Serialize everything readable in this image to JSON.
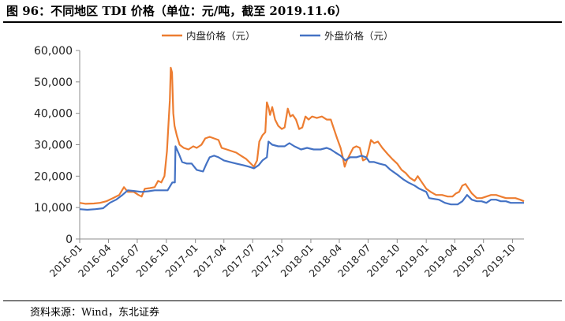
{
  "figure": {
    "title": "图 96：不同地区 TDI 价格（单位：元/吨，截至 2019.11.6）",
    "source": "资料来源：Wind，东北证券"
  },
  "chart_data": {
    "type": "line",
    "title": "",
    "xlabel": "",
    "ylabel": "",
    "ylim": [
      0,
      60000
    ],
    "yticks": [
      0,
      10000,
      20000,
      30000,
      40000,
      50000,
      60000
    ],
    "ytick_labels": [
      "0",
      "10,000",
      "20,000",
      "30,000",
      "40,000",
      "50,000",
      "60,000"
    ],
    "xticks": [
      "2016-01",
      "2016-04",
      "2016-07",
      "2016-10",
      "2017-01",
      "2017-04",
      "2017-07",
      "2017-10",
      "2018-01",
      "2018-04",
      "2018-07",
      "2018-10",
      "2019-01",
      "2019-04",
      "2019-07",
      "2019-10"
    ],
    "xlim": [
      "2016-01-01",
      "2019-11-06"
    ],
    "grid": false,
    "legend_position": "top",
    "series": [
      {
        "name": "内盘价格（元）",
        "color": "#ED7D31",
        "points": [
          [
            "2016-01-01",
            11500
          ],
          [
            "2016-01-20",
            11200
          ],
          [
            "2016-02-15",
            11300
          ],
          [
            "2016-03-05",
            11500
          ],
          [
            "2016-03-25",
            12000
          ],
          [
            "2016-04-15",
            13000
          ],
          [
            "2016-05-05",
            14000
          ],
          [
            "2016-05-20",
            16500
          ],
          [
            "2016-06-01",
            15000
          ],
          [
            "2016-06-20",
            15000
          ],
          [
            "2016-07-05",
            14000
          ],
          [
            "2016-07-15",
            13500
          ],
          [
            "2016-07-25",
            16000
          ],
          [
            "2016-08-10",
            16200
          ],
          [
            "2016-08-25",
            16500
          ],
          [
            "2016-09-05",
            18500
          ],
          [
            "2016-09-15",
            18000
          ],
          [
            "2016-09-25",
            20000
          ],
          [
            "2016-10-03",
            28000
          ],
          [
            "2016-10-08",
            37000
          ],
          [
            "2016-10-12",
            44000
          ],
          [
            "2016-10-15",
            54500
          ],
          [
            "2016-10-19",
            53000
          ],
          [
            "2016-10-23",
            40000
          ],
          [
            "2016-10-27",
            36000
          ],
          [
            "2016-11-03",
            33000
          ],
          [
            "2016-11-12",
            30000
          ],
          [
            "2016-11-25",
            29000
          ],
          [
            "2016-12-10",
            28500
          ],
          [
            "2016-12-25",
            29500
          ],
          [
            "2017-01-05",
            29000
          ],
          [
            "2017-01-20",
            30000
          ],
          [
            "2017-02-01",
            32000
          ],
          [
            "2017-02-15",
            32500
          ],
          [
            "2017-03-01",
            32000
          ],
          [
            "2017-03-15",
            31500
          ],
          [
            "2017-03-25",
            29000
          ],
          [
            "2017-04-10",
            28500
          ],
          [
            "2017-04-25",
            28000
          ],
          [
            "2017-05-10",
            27500
          ],
          [
            "2017-05-25",
            26500
          ],
          [
            "2017-06-10",
            25500
          ],
          [
            "2017-06-25",
            24000
          ],
          [
            "2017-07-05",
            23000
          ],
          [
            "2017-07-15",
            25000
          ],
          [
            "2017-07-22",
            31000
          ],
          [
            "2017-08-01",
            33000
          ],
          [
            "2017-08-10",
            34000
          ],
          [
            "2017-08-15",
            43500
          ],
          [
            "2017-08-20",
            42000
          ],
          [
            "2017-08-25",
            39500
          ],
          [
            "2017-09-01",
            42000
          ],
          [
            "2017-09-10",
            38000
          ],
          [
            "2017-09-20",
            36000
          ],
          [
            "2017-10-01",
            35000
          ],
          [
            "2017-10-10",
            35500
          ],
          [
            "2017-10-15",
            38500
          ],
          [
            "2017-10-20",
            41500
          ],
          [
            "2017-10-28",
            39000
          ],
          [
            "2017-11-05",
            39500
          ],
          [
            "2017-11-15",
            38000
          ],
          [
            "2017-11-25",
            35000
          ],
          [
            "2017-12-05",
            35500
          ],
          [
            "2017-12-15",
            39000
          ],
          [
            "2017-12-25",
            38000
          ],
          [
            "2018-01-05",
            39000
          ],
          [
            "2018-01-20",
            38500
          ],
          [
            "2018-02-05",
            39000
          ],
          [
            "2018-02-20",
            38000
          ],
          [
            "2018-03-05",
            38000
          ],
          [
            "2018-03-15",
            35000
          ],
          [
            "2018-03-25",
            32000
          ],
          [
            "2018-04-05",
            29000
          ],
          [
            "2018-04-12",
            26000
          ],
          [
            "2018-04-18",
            23000
          ],
          [
            "2018-04-25",
            25000
          ],
          [
            "2018-05-05",
            27000
          ],
          [
            "2018-05-15",
            29000
          ],
          [
            "2018-05-25",
            29500
          ],
          [
            "2018-06-05",
            29000
          ],
          [
            "2018-06-15",
            25000
          ],
          [
            "2018-06-25",
            25500
          ],
          [
            "2018-07-01",
            27500
          ],
          [
            "2018-07-10",
            31500
          ],
          [
            "2018-07-20",
            30500
          ],
          [
            "2018-08-01",
            31000
          ],
          [
            "2018-08-15",
            29000
          ],
          [
            "2018-09-01",
            27000
          ],
          [
            "2018-09-15",
            25500
          ],
          [
            "2018-10-01",
            24000
          ],
          [
            "2018-10-15",
            22000
          ],
          [
            "2018-10-28",
            21000
          ],
          [
            "2018-11-10",
            19500
          ],
          [
            "2018-11-25",
            18500
          ],
          [
            "2018-12-05",
            20000
          ],
          [
            "2018-12-15",
            18500
          ],
          [
            "2019-01-01",
            16000
          ],
          [
            "2019-01-15",
            15000
          ],
          [
            "2019-02-01",
            14000
          ],
          [
            "2019-02-20",
            14000
          ],
          [
            "2019-03-10",
            13500
          ],
          [
            "2019-03-25",
            13500
          ],
          [
            "2019-04-05",
            14500
          ],
          [
            "2019-04-15",
            15000
          ],
          [
            "2019-04-25",
            17000
          ],
          [
            "2019-05-05",
            17500
          ],
          [
            "2019-05-15",
            16000
          ],
          [
            "2019-05-25",
            14500
          ],
          [
            "2019-06-10",
            13000
          ],
          [
            "2019-06-25",
            13000
          ],
          [
            "2019-07-10",
            13500
          ],
          [
            "2019-07-25",
            14000
          ],
          [
            "2019-08-10",
            14000
          ],
          [
            "2019-08-25",
            13500
          ],
          [
            "2019-09-10",
            13000
          ],
          [
            "2019-09-25",
            13000
          ],
          [
            "2019-10-10",
            13000
          ],
          [
            "2019-10-25",
            12500
          ],
          [
            "2019-11-06",
            12000
          ]
        ]
      },
      {
        "name": "外盘价格（元）",
        "color": "#4472C4",
        "points": [
          [
            "2016-01-01",
            9500
          ],
          [
            "2016-01-25",
            9300
          ],
          [
            "2016-02-20",
            9500
          ],
          [
            "2016-03-15",
            9800
          ],
          [
            "2016-04-05",
            11500
          ],
          [
            "2016-04-25",
            12500
          ],
          [
            "2016-05-15",
            14000
          ],
          [
            "2016-06-01",
            15500
          ],
          [
            "2016-06-20",
            15300
          ],
          [
            "2016-07-15",
            15000
          ],
          [
            "2016-08-05",
            15200
          ],
          [
            "2016-08-25",
            15500
          ],
          [
            "2016-09-15",
            15500
          ],
          [
            "2016-10-05",
            15500
          ],
          [
            "2016-10-20",
            18000
          ],
          [
            "2016-10-28",
            18000
          ],
          [
            "2016-10-30",
            29500
          ],
          [
            "2016-11-10",
            27000
          ],
          [
            "2016-11-20",
            24500
          ],
          [
            "2016-12-05",
            24000
          ],
          [
            "2016-12-20",
            24000
          ],
          [
            "2017-01-05",
            22000
          ],
          [
            "2017-01-25",
            21500
          ],
          [
            "2017-02-05",
            24000
          ],
          [
            "2017-02-15",
            26000
          ],
          [
            "2017-03-01",
            26500
          ],
          [
            "2017-03-15",
            26000
          ],
          [
            "2017-04-01",
            25000
          ],
          [
            "2017-04-20",
            24500
          ],
          [
            "2017-05-10",
            24000
          ],
          [
            "2017-06-01",
            23500
          ],
          [
            "2017-06-20",
            23000
          ],
          [
            "2017-07-05",
            22500
          ],
          [
            "2017-07-20",
            23500
          ],
          [
            "2017-08-01",
            25000
          ],
          [
            "2017-08-15",
            26000
          ],
          [
            "2017-08-20",
            31000
          ],
          [
            "2017-09-01",
            30000
          ],
          [
            "2017-09-20",
            29500
          ],
          [
            "2017-10-10",
            29500
          ],
          [
            "2017-10-25",
            30500
          ],
          [
            "2017-11-10",
            29500
          ],
          [
            "2017-12-01",
            28500
          ],
          [
            "2017-12-20",
            29000
          ],
          [
            "2018-01-10",
            28500
          ],
          [
            "2018-02-01",
            28500
          ],
          [
            "2018-02-20",
            29000
          ],
          [
            "2018-03-05",
            28500
          ],
          [
            "2018-03-20",
            27500
          ],
          [
            "2018-04-05",
            26500
          ],
          [
            "2018-04-20",
            25000
          ],
          [
            "2018-05-05",
            26000
          ],
          [
            "2018-05-25",
            26000
          ],
          [
            "2018-06-10",
            26500
          ],
          [
            "2018-06-25",
            26000
          ],
          [
            "2018-07-05",
            24500
          ],
          [
            "2018-07-20",
            24500
          ],
          [
            "2018-08-05",
            24000
          ],
          [
            "2018-08-25",
            23500
          ],
          [
            "2018-09-10",
            22000
          ],
          [
            "2018-10-01",
            20500
          ],
          [
            "2018-10-20",
            19000
          ],
          [
            "2018-11-05",
            18000
          ],
          [
            "2018-11-25",
            17000
          ],
          [
            "2018-12-10",
            16000
          ],
          [
            "2019-01-01",
            15000
          ],
          [
            "2019-01-10",
            13000
          ],
          [
            "2019-02-10",
            12500
          ],
          [
            "2019-03-01",
            11500
          ],
          [
            "2019-03-20",
            11000
          ],
          [
            "2019-04-10",
            11000
          ],
          [
            "2019-04-25",
            12000
          ],
          [
            "2019-05-10",
            14000
          ],
          [
            "2019-05-25",
            12500
          ],
          [
            "2019-06-10",
            12000
          ],
          [
            "2019-06-25",
            12000
          ],
          [
            "2019-07-10",
            11500
          ],
          [
            "2019-07-25",
            12500
          ],
          [
            "2019-08-10",
            12500
          ],
          [
            "2019-08-25",
            12000
          ],
          [
            "2019-09-10",
            12000
          ],
          [
            "2019-09-25",
            11500
          ],
          [
            "2019-10-10",
            11500
          ],
          [
            "2019-10-25",
            11500
          ],
          [
            "2019-11-06",
            11500
          ]
        ]
      }
    ]
  }
}
